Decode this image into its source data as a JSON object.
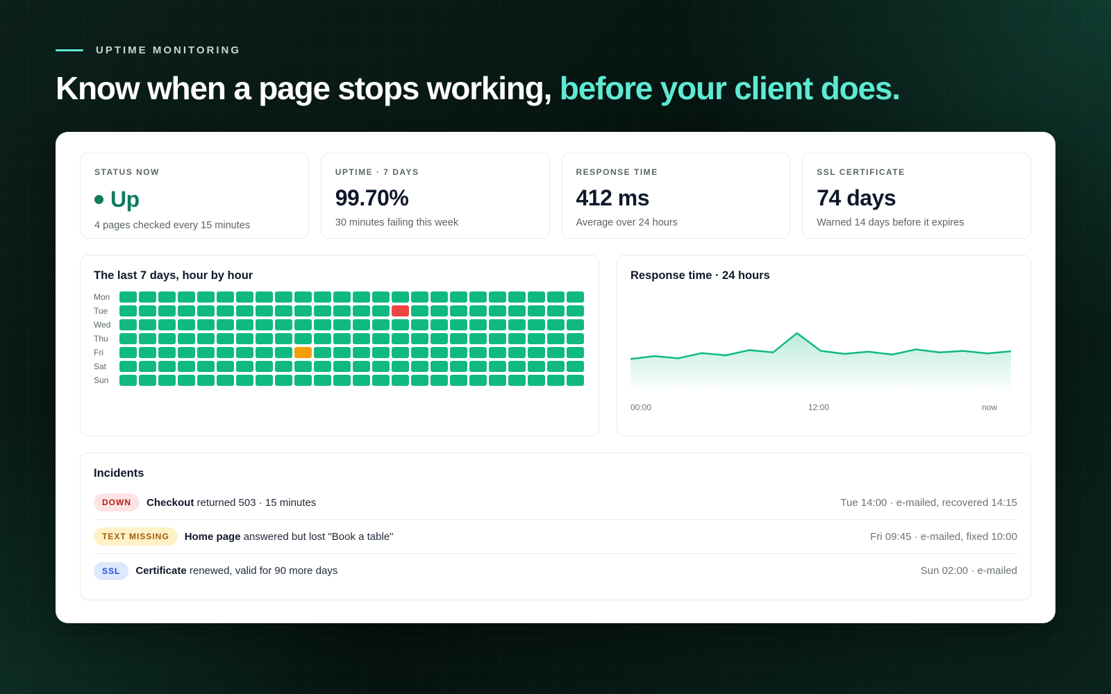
{
  "eyebrow": "UPTIME MONITORING",
  "headline": {
    "main": "Know when a page stops working, ",
    "accent": "before your client does."
  },
  "stats": [
    {
      "label": "STATUS NOW",
      "value": "Up",
      "sub": "4 pages checked every 15 minutes"
    },
    {
      "label": "UPTIME · 7 DAYS",
      "value": "99.70%",
      "sub": "30 minutes failing this week"
    },
    {
      "label": "RESPONSE TIME",
      "value": "412 ms",
      "sub": "Average over 24 hours"
    },
    {
      "label": "SSL CERTIFICATE",
      "value": "74 days",
      "sub": "Warned 14 days before it expires"
    }
  ],
  "heatmap": {
    "title": "The last 7 days, hour by hour",
    "days": [
      "Mon",
      "Tue",
      "Wed",
      "Thu",
      "Fri",
      "Sat",
      "Sun"
    ],
    "hours": 24,
    "special_cells": [
      {
        "day": "Tue",
        "hour": 14,
        "state": "down"
      },
      {
        "day": "Fri",
        "hour": 9,
        "state": "warn"
      }
    ],
    "colors": {
      "up": "#10b981",
      "down": "#ef4444",
      "warn": "#f59e0b"
    }
  },
  "chart_data": {
    "type": "area",
    "title": "Response time · 24 hours",
    "x_tick_labels": [
      "00:00",
      "12:00",
      "now"
    ],
    "values": [
      400,
      408,
      402,
      416,
      410,
      424,
      418,
      470,
      422,
      414,
      420,
      412,
      426,
      418,
      422,
      415,
      421
    ],
    "ylim": [
      320,
      500
    ],
    "color": "#10b981"
  },
  "incidents": {
    "title": "Incidents",
    "items": [
      {
        "badge": "DOWN",
        "kind": "down",
        "subject": "Checkout",
        "text": " returned 503 · 15 minutes",
        "meta": "Tue 14:00 · e-mailed, recovered 14:15"
      },
      {
        "badge": "TEXT MISSING",
        "kind": "text",
        "subject": "Home page",
        "text": " answered but lost \"Book a table\"",
        "meta": "Fri 09:45 · e-mailed, fixed 10:00"
      },
      {
        "badge": "SSL",
        "kind": "ssl",
        "subject": "Certificate",
        "text": " renewed, valid for 90 more days",
        "meta": "Sun 02:00 · e-mailed"
      }
    ]
  }
}
